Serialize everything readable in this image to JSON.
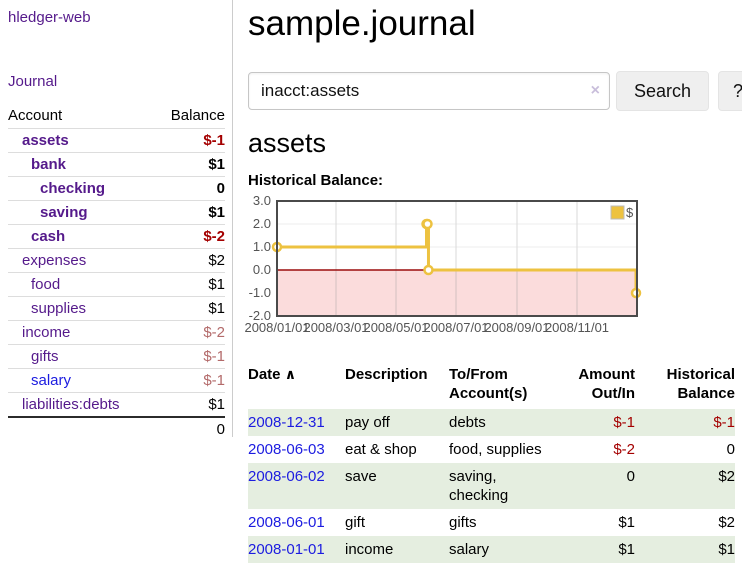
{
  "app": {
    "brand": "hledger-web",
    "nav_journal": "Journal"
  },
  "sidebar": {
    "headers": {
      "account": "Account",
      "balance": "Balance"
    },
    "accounts": [
      {
        "name": "assets",
        "balance": "$-1",
        "depth": 1,
        "matched": true,
        "bal_tone": "neg"
      },
      {
        "name": "bank",
        "balance": "$1",
        "depth": 2,
        "matched": true
      },
      {
        "name": "checking",
        "balance": "0",
        "depth": 3,
        "matched": true
      },
      {
        "name": "saving",
        "balance": "$1",
        "depth": 3,
        "matched": true
      },
      {
        "name": "cash",
        "balance": "$-2",
        "depth": 2,
        "matched": true,
        "bal_tone": "neg"
      },
      {
        "name": "expenses",
        "balance": "$2",
        "depth": 1
      },
      {
        "name": "food",
        "balance": "$1",
        "depth": 2
      },
      {
        "name": "supplies",
        "balance": "$1",
        "depth": 2
      },
      {
        "name": "income",
        "balance": "$-2",
        "depth": 1,
        "bal_tone": "soft"
      },
      {
        "name": "gifts",
        "balance": "$-1",
        "depth": 2,
        "bal_tone": "soft"
      },
      {
        "name": "salary",
        "balance": "$-1",
        "depth": 2,
        "bal_tone": "soft",
        "link_tone": "blue"
      },
      {
        "name": "liabilities:debts",
        "balance": "$1",
        "depth": 1
      }
    ],
    "total": "0"
  },
  "header": {
    "title": "sample.journal"
  },
  "search": {
    "value": "inacct:assets",
    "clear_icon": "×",
    "button": "Search",
    "help_button": "?"
  },
  "account_page": {
    "heading": "assets",
    "chart_label": "Historical Balance:"
  },
  "chart_data": {
    "type": "line",
    "step": true,
    "title": "Historical Balance of assets",
    "series": [
      {
        "name": "$",
        "color": "#edc240",
        "points": [
          [
            "2008-01-01",
            1
          ],
          [
            "2008-06-01",
            2
          ],
          [
            "2008-06-02",
            2
          ],
          [
            "2008-06-03",
            0
          ],
          [
            "2008-12-31",
            -1
          ]
        ]
      }
    ],
    "x_range": [
      "2008-01-01",
      "2009-01-01"
    ],
    "x_ticks": [
      "2008/01/01",
      "2008/03/01",
      "2008/05/01",
      "2008/07/01",
      "2008/09/01",
      "2008/11/01"
    ],
    "y_ticks": [
      "3.0",
      "2.0",
      "1.0",
      "0.0",
      "-1.0",
      "-2.0"
    ],
    "ylim": [
      -2,
      3
    ],
    "grid": true,
    "legend_position": "top-right",
    "negative_region_fill": "#fbdcdc",
    "zero_line_color": "#9b0d0d",
    "border_color": "#4a4a4a"
  },
  "register": {
    "headers": {
      "date": "Date",
      "sort_icon": "∧",
      "description": "Description",
      "account": "To/From Account(s)",
      "amount": "Amount Out/In",
      "balance": "Historical Balance"
    },
    "rows": [
      {
        "date": "2008-12-31",
        "description": "pay off",
        "accounts": "debts",
        "amount": "$-1",
        "balance": "$-1",
        "amount_tone": "neg",
        "balance_tone": "neg",
        "shaded": true
      },
      {
        "date": "2008-06-03",
        "description": "eat & shop",
        "accounts": "food, supplies",
        "amount": "$-2",
        "balance": "0",
        "amount_tone": "neg"
      },
      {
        "date": "2008-06-02",
        "description": "save",
        "accounts": "saving, checking",
        "amount": "0",
        "balance": "$2",
        "shaded": true
      },
      {
        "date": "2008-06-01",
        "description": "gift",
        "accounts": "gifts",
        "amount": "$1",
        "balance": "$2"
      },
      {
        "date": "2008-01-01",
        "description": "income",
        "accounts": "salary",
        "amount": "$1",
        "balance": "$1",
        "shaded": true
      }
    ]
  },
  "colors": {
    "link_purple": "#551a8b",
    "link_blue": "#1c1ce0",
    "negative_strong": "#a40000",
    "negative_soft": "#b36a6a",
    "row_green": "#e5eee0",
    "chart_gold": "#edc240",
    "chart_negative_pink": "#fbdcdc",
    "chart_zero_line": "#9b0d0d"
  }
}
